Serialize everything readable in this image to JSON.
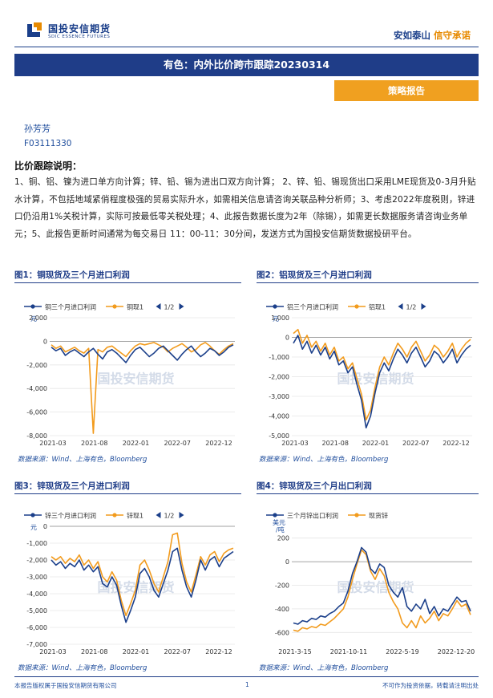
{
  "header": {
    "logo_cn": "国投安信期货",
    "logo_en": "SDIC ESSENCE FUTURES",
    "slogan_a": "安如泰山",
    "slogan_b": "信守承诺"
  },
  "title": "有色：内外比价跨市跟踪20230314",
  "tag": "策略报告",
  "author": "孙芳芳",
  "code": "F03111330",
  "section": "比价跟踪说明：",
  "description": "1、铜、铝、镍为进口单方向计算；锌、铅、锡为进出口双方向计算； 2、锌、铅、锡现货出口采用LME现货及0-3月升贴水计算，不包括地域紧俏程度极强的贸易实际升水，如需相关信息请咨询关联品种分析师；3、考虑2022年度税则，锌进口仍沿用1%关税计算，实际可按最低零关税处理；4、此报告数据长度为2年（除锡），如需更长数据服务请咨询业务单元；5、此报告更新时间通常为每交易日 11：00-11：30分间，发送方式为国投安信期货数据投研平台。",
  "figures": [
    {
      "title": "图1：铜现货及三个月进口利润",
      "source": "数据来源：Wind、上海有色，Bloomberg"
    },
    {
      "title": "图2：铝现货及三个月进口利润",
      "source": "数据来源：Wind、上海有色，Bloomberg"
    },
    {
      "title": "图3：锌现货及三个月进口利润",
      "source": "数据来源：Wind、上海有色，Bloomberg"
    },
    {
      "title": "图4：锌现货及三个月出口利润",
      "source": "数据来源：Wind、上海有色，Bloomberg"
    }
  ],
  "watermark": "国投安信期货",
  "footer": {
    "left": "本报告版权属于国投安信期货有限公司",
    "page": "1",
    "right": "不可作为投资依据，转载请注明出处"
  },
  "chart_data": [
    {
      "type": "line",
      "legend": [
        "铜三个月进口利润",
        "铜现1"
      ],
      "pager": "1/2",
      "unit": "元",
      "ylim": [
        -8000,
        2000
      ],
      "yticks": [
        "2,000",
        "0",
        "-2,000",
        "-4,000",
        "-6,000",
        "-8,000"
      ],
      "xticks": [
        "2021-03",
        "2021-08",
        "2022-01",
        "2022-07",
        "2022-12"
      ],
      "series": [
        {
          "name": "铜三个月进口利润",
          "color": "#1b3f8a",
          "values": [
            -500,
            -800,
            -600,
            -1200,
            -900,
            -700,
            -1000,
            -1300,
            -900,
            -600,
            -1100,
            -1500,
            -900,
            -700,
            -1000,
            -1400,
            -1800,
            -1200,
            -700,
            -500,
            -900,
            -1300,
            -1000,
            -600,
            -400,
            -800,
            -1200,
            -1600,
            -1100,
            -700,
            -400,
            -900,
            -1300,
            -1000,
            -600,
            -800,
            -1200,
            -900,
            -500,
            -300
          ]
        },
        {
          "name": "铜现1",
          "color": "#f29b1d",
          "values": [
            -300,
            -600,
            -400,
            -900,
            -700,
            -500,
            -800,
            -1000,
            -600,
            -7800,
            -700,
            -900,
            -500,
            -400,
            -700,
            -1000,
            -1300,
            -800,
            -400,
            -200,
            -300,
            -200,
            -100,
            -300,
            -500,
            -900,
            -600,
            -400,
            -200,
            -500,
            -900,
            -700,
            -300,
            -100,
            -400,
            -800,
            -1100,
            -700,
            -400,
            -200
          ]
        }
      ]
    },
    {
      "type": "line",
      "legend": [
        "铝三个月进口利润",
        "铝现1"
      ],
      "pager": "1/2",
      "unit": "元",
      "ylim": [
        -5000,
        1000
      ],
      "yticks": [
        "1,000",
        "0",
        "-1,000",
        "-2,000",
        "-3,000",
        "-4,000",
        "-5,000"
      ],
      "xticks": [
        "2021-03",
        "2021-08",
        "2022-01",
        "2022-07",
        "2022-12"
      ],
      "series": [
        {
          "name": "铝三个月进口利润",
          "color": "#1b3f8a",
          "values": [
            -300,
            100,
            -600,
            -200,
            -800,
            -400,
            -900,
            -500,
            -1100,
            -700,
            -1400,
            -1200,
            -1800,
            -1500,
            -2400,
            -3200,
            -4600,
            -4000,
            -2800,
            -1800,
            -1300,
            -1700,
            -1100,
            -600,
            -900,
            -1300,
            -800,
            -500,
            -1000,
            -1500,
            -1200,
            -700,
            -900,
            -1300,
            -1000,
            -600,
            -1300,
            -900,
            -600,
            -400
          ]
        },
        {
          "name": "铝现1",
          "color": "#f29b1d",
          "values": [
            200,
            400,
            -300,
            100,
            -500,
            -200,
            -700,
            -300,
            -900,
            -500,
            -1200,
            -1000,
            -1600,
            -1300,
            -2100,
            -2900,
            -4200,
            -3700,
            -2500,
            -1500,
            -1000,
            -1400,
            -800,
            -300,
            -600,
            -1000,
            -500,
            -200,
            -700,
            -1200,
            -900,
            -400,
            -600,
            -1000,
            -700,
            -300,
            -1000,
            -600,
            -300,
            -100
          ]
        }
      ]
    },
    {
      "type": "line",
      "legend": [
        "锌三个月进口利润",
        "锌现1"
      ],
      "pager": "1/2",
      "unit": "元",
      "ylim": [
        -7000,
        0
      ],
      "yticks": [
        "0",
        "-1,000",
        "-2,000",
        "-3,000",
        "-4,000",
        "-5,000",
        "-6,000",
        "-7,000"
      ],
      "xticks": [
        "2021-03",
        "2021-08",
        "2022-01",
        "2022-07",
        "2022-12"
      ],
      "series": [
        {
          "name": "锌三个月进口利润",
          "color": "#1b3f8a",
          "values": [
            -2000,
            -2300,
            -2100,
            -2500,
            -2200,
            -2400,
            -2000,
            -2600,
            -2300,
            -2700,
            -2400,
            -3400,
            -3600,
            -3000,
            -3500,
            -4700,
            -5700,
            -5000,
            -4200,
            -2800,
            -2500,
            -3000,
            -3800,
            -4200,
            -3400,
            -2600,
            -1500,
            -1300,
            -2600,
            -3600,
            -4200,
            -3200,
            -2000,
            -2600,
            -2000,
            -1800,
            -2400,
            -1900,
            -1700,
            -1500
          ]
        },
        {
          "name": "锌现1",
          "color": "#f29b1d",
          "values": [
            -1800,
            -2000,
            -1800,
            -2200,
            -1900,
            -2100,
            -1700,
            -2300,
            -2000,
            -2500,
            -2100,
            -3000,
            -3300,
            -2700,
            -3200,
            -4400,
            -5300,
            -4600,
            -3800,
            -2300,
            -2000,
            -2600,
            -3400,
            -3900,
            -3000,
            -2100,
            -500,
            -400,
            -2200,
            -3300,
            -3900,
            -2900,
            -1800,
            -2300,
            -1700,
            -1500,
            -2100,
            -1600,
            -1400,
            -1300
          ]
        }
      ]
    },
    {
      "type": "line",
      "legend": [
        "三个月锌出口利润",
        "现货锌"
      ],
      "unit": "美元/吨",
      "ylim": [
        -700,
        300
      ],
      "yticks": [
        "200",
        "0",
        "-200",
        "-400",
        "-600"
      ],
      "xticks": [
        "2021-3-15",
        "2021-10-11",
        "2022-5-19",
        "2022-12-20"
      ],
      "series": [
        {
          "name": "三个月锌出口利润",
          "color": "#1b3f8a",
          "values": [
            -520,
            -530,
            -500,
            -510,
            -480,
            -490,
            -460,
            -470,
            -440,
            -420,
            -380,
            -350,
            -250,
            -100,
            0,
            120,
            80,
            -60,
            -100,
            -20,
            -50,
            -200,
            -260,
            -300,
            -220,
            -380,
            -420,
            -360,
            -400,
            -320,
            -440,
            -380,
            -460,
            -400,
            -420,
            -360,
            -300,
            -340,
            -330,
            -420
          ]
        },
        {
          "name": "现货锌",
          "color": "#f29b1d",
          "values": [
            -580,
            -590,
            -560,
            -570,
            -550,
            -560,
            -530,
            -540,
            -510,
            -480,
            -440,
            -400,
            -300,
            -150,
            -20,
            100,
            60,
            -80,
            -150,
            -60,
            -120,
            -260,
            -340,
            -400,
            -520,
            -560,
            -500,
            -560,
            -460,
            -520,
            -480,
            -420,
            -500,
            -440,
            -460,
            -400,
            -330,
            -380,
            -360,
            -450
          ]
        }
      ]
    }
  ]
}
